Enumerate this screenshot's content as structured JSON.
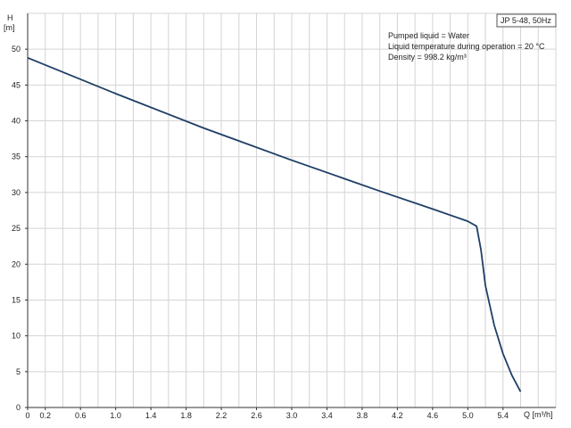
{
  "chart_data": {
    "type": "line",
    "model_label": "JP 5-48, 50Hz",
    "annotations": [
      "Pumped liquid = Water",
      "Liquid temperature during operation = 20 °C",
      "Density = 998.2 kg/m³"
    ],
    "y_axis": {
      "label_line1": "H",
      "label_line2": "[m]",
      "min": 0,
      "max": 55,
      "ticks": [
        "0",
        "5",
        "10",
        "15",
        "20",
        "25",
        "30",
        "35",
        "40",
        "45",
        "50"
      ]
    },
    "x_axis": {
      "label": "Q [m³/h]",
      "min": 0,
      "max": 6.0,
      "ticks": [
        "0",
        "0.2",
        "0.6",
        "1.0",
        "1.4",
        "1.8",
        "2.2",
        "2.6",
        "3.0",
        "3.4",
        "3.8",
        "4.2",
        "4.6",
        "5.0",
        "5.4"
      ],
      "tick_values": [
        0,
        0.2,
        0.6,
        1.0,
        1.4,
        1.8,
        2.2,
        2.6,
        3.0,
        3.4,
        3.8,
        4.2,
        4.6,
        5.0,
        5.4
      ]
    },
    "grid": true,
    "series": [
      {
        "color": "#1f3f66",
        "x": [
          0,
          1.0,
          2.0,
          3.0,
          4.0,
          4.6,
          5.0,
          5.1,
          5.15,
          5.2,
          5.3,
          5.4,
          5.5,
          5.6
        ],
        "y": [
          48.8,
          43.8,
          39.0,
          34.5,
          30.2,
          27.7,
          26.0,
          25.3,
          22.0,
          17.0,
          11.5,
          7.5,
          4.5,
          2.2
        ]
      }
    ]
  }
}
